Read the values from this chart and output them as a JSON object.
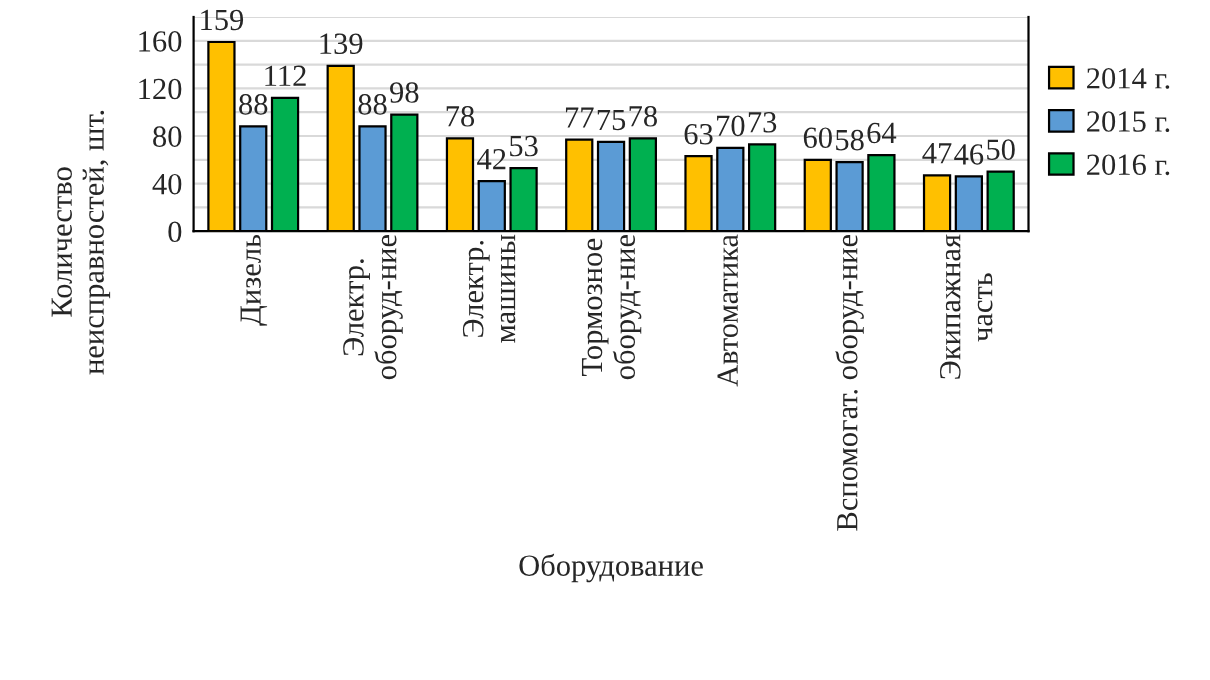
{
  "chart_data": {
    "type": "bar",
    "categories": [
      "Дизель",
      "Электр.\nоборуд-ние",
      "Электр.\nмашины",
      "Тормозное\nоборуд-ние",
      "Автоматика",
      "Вспомогат. оборуд-ние",
      "Экипажная\nчасть"
    ],
    "series": [
      {
        "name": "2014 г.",
        "color": "#ffc000",
        "values": [
          159,
          139,
          78,
          77,
          63,
          60,
          47
        ]
      },
      {
        "name": "2015 г.",
        "color": "#5b9bd5",
        "values": [
          88,
          88,
          42,
          75,
          70,
          58,
          46
        ]
      },
      {
        "name": "2016 г.",
        "color": "#00b050",
        "values": [
          112,
          98,
          53,
          78,
          73,
          64,
          50
        ]
      }
    ],
    "xlabel": "Оборудование",
    "ylabel": "Количество\nнеисправностей, шт.",
    "ylim": [
      0,
      180
    ],
    "yticks": [
      0,
      {
        "value": 20,
        "label": null
      },
      40,
      {
        "value": 60,
        "label": null
      },
      80,
      {
        "value": 100,
        "label": null
      },
      120,
      {
        "value": 140,
        "label": null
      },
      160,
      {
        "value": 180,
        "label": null
      }
    ],
    "grid": "y",
    "legend": "right",
    "data_labels": true
  }
}
